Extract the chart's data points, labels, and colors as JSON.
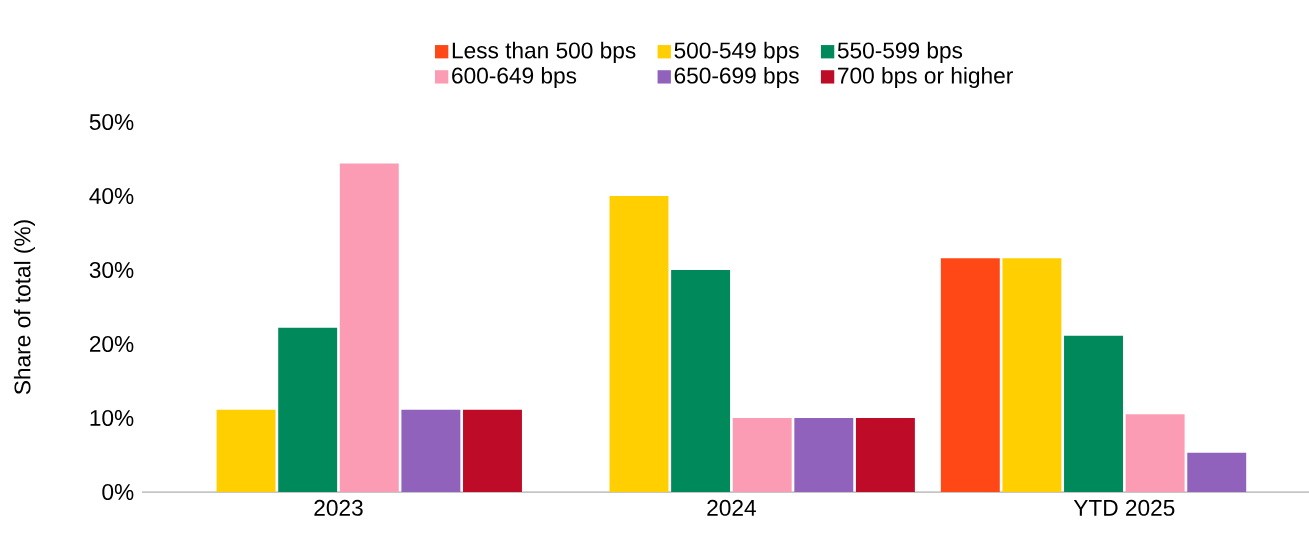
{
  "chart_data": {
    "type": "bar",
    "ylabel": "Share of total (%)",
    "categories": [
      "2023",
      "2024",
      "YTD 2025"
    ],
    "series": [
      {
        "name": "Less than 500 bps",
        "color": "#ff4815",
        "values": [
          0,
          0,
          31.6
        ]
      },
      {
        "name": "500-549 bps",
        "color": "#ffcf01",
        "values": [
          11.1,
          40,
          31.6
        ]
      },
      {
        "name": "550-599 bps",
        "color": "#008a5c",
        "values": [
          22.2,
          30,
          21.1
        ]
      },
      {
        "name": "600-649 bps",
        "color": "#fb9bb4",
        "values": [
          44.4,
          10,
          10.5
        ]
      },
      {
        "name": "650-699 bps",
        "color": "#9062bb",
        "values": [
          11.1,
          10,
          5.3
        ]
      },
      {
        "name": "700 bps or higher",
        "color": "#be0c28",
        "values": [
          11.1,
          10,
          0
        ]
      }
    ],
    "ylim": [
      0,
      50
    ],
    "yticks": [
      {
        "value": 0,
        "label": "0%"
      },
      {
        "value": 10,
        "label": "10%"
      },
      {
        "value": 20,
        "label": "20%"
      },
      {
        "value": 30,
        "label": "30%"
      },
      {
        "value": 40,
        "label": "40%"
      },
      {
        "value": 50,
        "label": "50%"
      }
    ],
    "legend": "top"
  }
}
